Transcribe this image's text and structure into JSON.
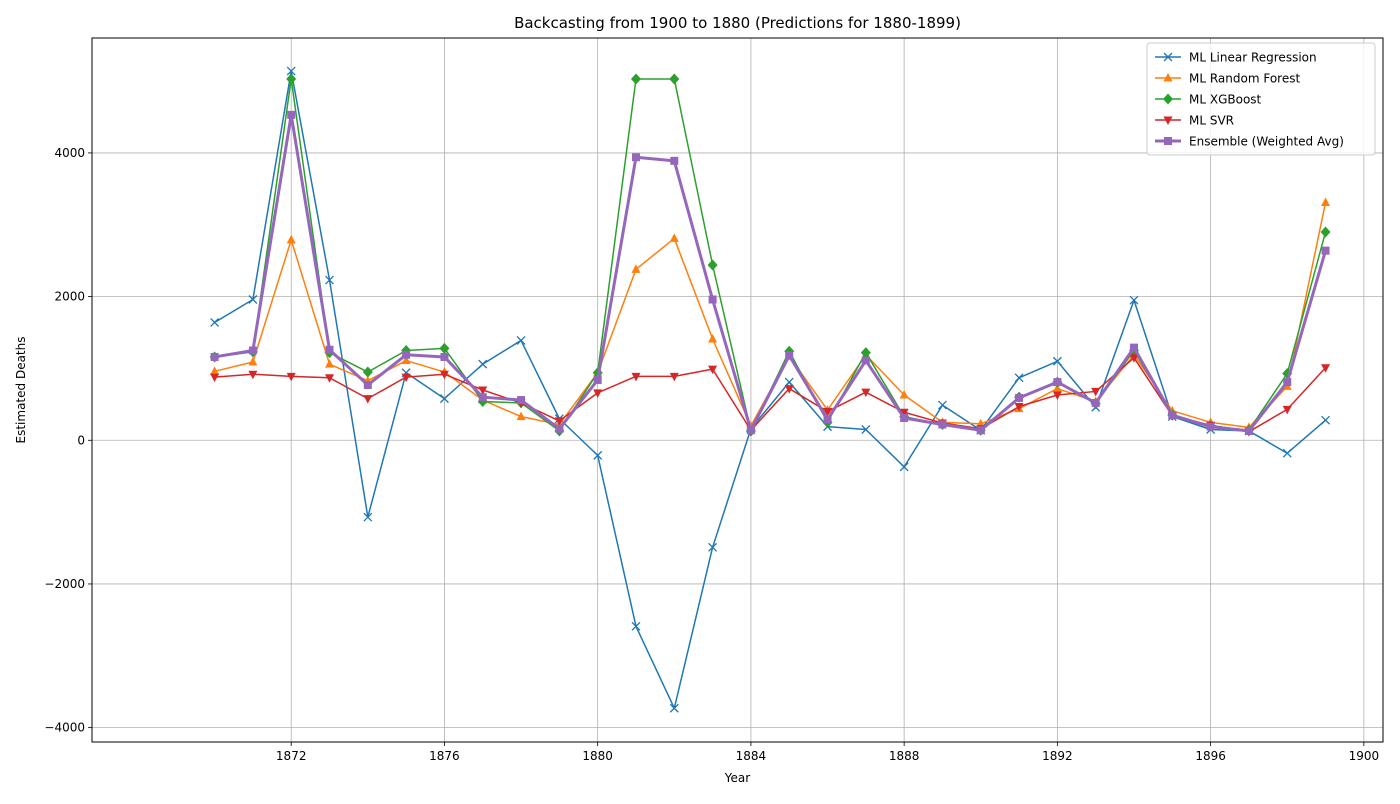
{
  "chart_data": {
    "type": "line",
    "title": "Backcasting from 1900 to 1880 (Predictions for 1880-1899)",
    "xlabel": "Year",
    "ylabel": "Estimated Deaths",
    "xlim": [
      1866.8,
      1900.5
    ],
    "ylim": [
      -4200,
      5600
    ],
    "x_ticks": [
      1872,
      1876,
      1880,
      1884,
      1888,
      1892,
      1896,
      1900
    ],
    "y_ticks": [
      -4000,
      -2000,
      0,
      2000,
      4000
    ],
    "grid": true,
    "legend_position": "top-right",
    "x": [
      1870,
      1871,
      1872,
      1873,
      1874,
      1875,
      1876,
      1877,
      1878,
      1879,
      1880,
      1881,
      1882,
      1883,
      1884,
      1885,
      1886,
      1887,
      1888,
      1889,
      1890,
      1891,
      1892,
      1893,
      1894,
      1895,
      1896,
      1897,
      1898,
      1899
    ],
    "series": [
      {
        "name": "ML Linear Regression",
        "color": "#1f77b4",
        "marker": "x",
        "width": 1.5,
        "values": [
          1640,
          1960,
          5140,
          2230,
          -1070,
          940,
          580,
          1060,
          1390,
          300,
          -210,
          -2590,
          -3730,
          -1490,
          160,
          810,
          190,
          150,
          -370,
          490,
          140,
          870,
          1100,
          460,
          1950,
          330,
          150,
          130,
          -180,
          280
        ]
      },
      {
        "name": "ML Random Forest",
        "color": "#ff7f0e",
        "marker": "triangle-up",
        "width": 1.5,
        "values": [
          960,
          1090,
          2790,
          1060,
          830,
          1110,
          950,
          560,
          330,
          220,
          940,
          2380,
          2810,
          1410,
          200,
          1170,
          420,
          1190,
          630,
          250,
          230,
          440,
          720,
          540,
          1190,
          410,
          250,
          180,
          750,
          3310
        ]
      },
      {
        "name": "ML XGBoost",
        "color": "#2ca02c",
        "marker": "diamond",
        "width": 1.5,
        "values": [
          1160,
          1230,
          5030,
          1220,
          950,
          1250,
          1280,
          540,
          520,
          130,
          940,
          5030,
          5030,
          2440,
          130,
          1240,
          250,
          1220,
          330,
          220,
          140,
          600,
          810,
          510,
          1250,
          350,
          200,
          140,
          930,
          2900
        ]
      },
      {
        "name": "ML SVR",
        "color": "#d62728",
        "marker": "triangle-down",
        "width": 1.5,
        "values": [
          880,
          920,
          890,
          870,
          580,
          880,
          920,
          700,
          520,
          270,
          660,
          890,
          890,
          990,
          140,
          720,
          400,
          670,
          390,
          240,
          160,
          470,
          630,
          680,
          1150,
          340,
          210,
          120,
          430,
          1010
        ]
      },
      {
        "name": "Ensemble (Weighted Avg)",
        "color": "#9467bd",
        "marker": "square",
        "width": 3,
        "values": [
          1160,
          1250,
          4530,
          1260,
          770,
          1190,
          1160,
          600,
          560,
          160,
          840,
          3940,
          3890,
          1960,
          140,
          1180,
          290,
          1110,
          310,
          220,
          140,
          590,
          810,
          520,
          1290,
          350,
          190,
          130,
          810,
          2640
        ]
      }
    ]
  }
}
